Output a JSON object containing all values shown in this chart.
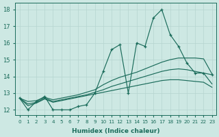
{
  "xlabel": "Humidex (Indice chaleur)",
  "xlim": [
    -0.5,
    23.5
  ],
  "ylim": [
    11.7,
    18.4
  ],
  "yticks": [
    12,
    13,
    14,
    15,
    16,
    17,
    18
  ],
  "xticks": [
    0,
    1,
    2,
    3,
    4,
    5,
    6,
    7,
    8,
    9,
    10,
    11,
    12,
    13,
    14,
    15,
    16,
    17,
    18,
    19,
    20,
    21,
    22,
    23
  ],
  "bg_color": "#cde8e3",
  "grid_color": "#b5d5cf",
  "line_color": "#1a6b5a",
  "line1_markers": [
    12.7,
    12.0,
    12.5,
    12.8,
    12.0,
    12.0,
    12.0,
    12.2,
    12.3,
    13.0,
    14.3,
    15.6,
    15.9,
    13.0,
    16.0,
    15.8,
    17.5,
    18.0,
    16.5,
    15.8,
    14.8,
    14.2,
    14.2,
    14.1
  ],
  "line2_top": [
    12.7,
    12.5,
    12.55,
    12.75,
    12.6,
    12.7,
    12.8,
    12.9,
    13.05,
    13.2,
    13.5,
    13.75,
    13.95,
    14.1,
    14.25,
    14.45,
    14.65,
    14.85,
    15.0,
    15.1,
    15.1,
    15.1,
    15.05,
    14.15
  ],
  "line3_mid": [
    12.7,
    12.35,
    12.45,
    12.7,
    12.5,
    12.6,
    12.7,
    12.8,
    12.9,
    13.05,
    13.2,
    13.4,
    13.55,
    13.7,
    13.85,
    14.0,
    14.15,
    14.3,
    14.4,
    14.45,
    14.4,
    14.3,
    14.2,
    13.55
  ],
  "line4_bot": [
    12.7,
    12.25,
    12.4,
    12.65,
    12.45,
    12.55,
    12.65,
    12.75,
    12.85,
    12.95,
    13.05,
    13.15,
    13.25,
    13.35,
    13.45,
    13.55,
    13.65,
    13.75,
    13.8,
    13.8,
    13.75,
    13.7,
    13.65,
    13.35
  ]
}
